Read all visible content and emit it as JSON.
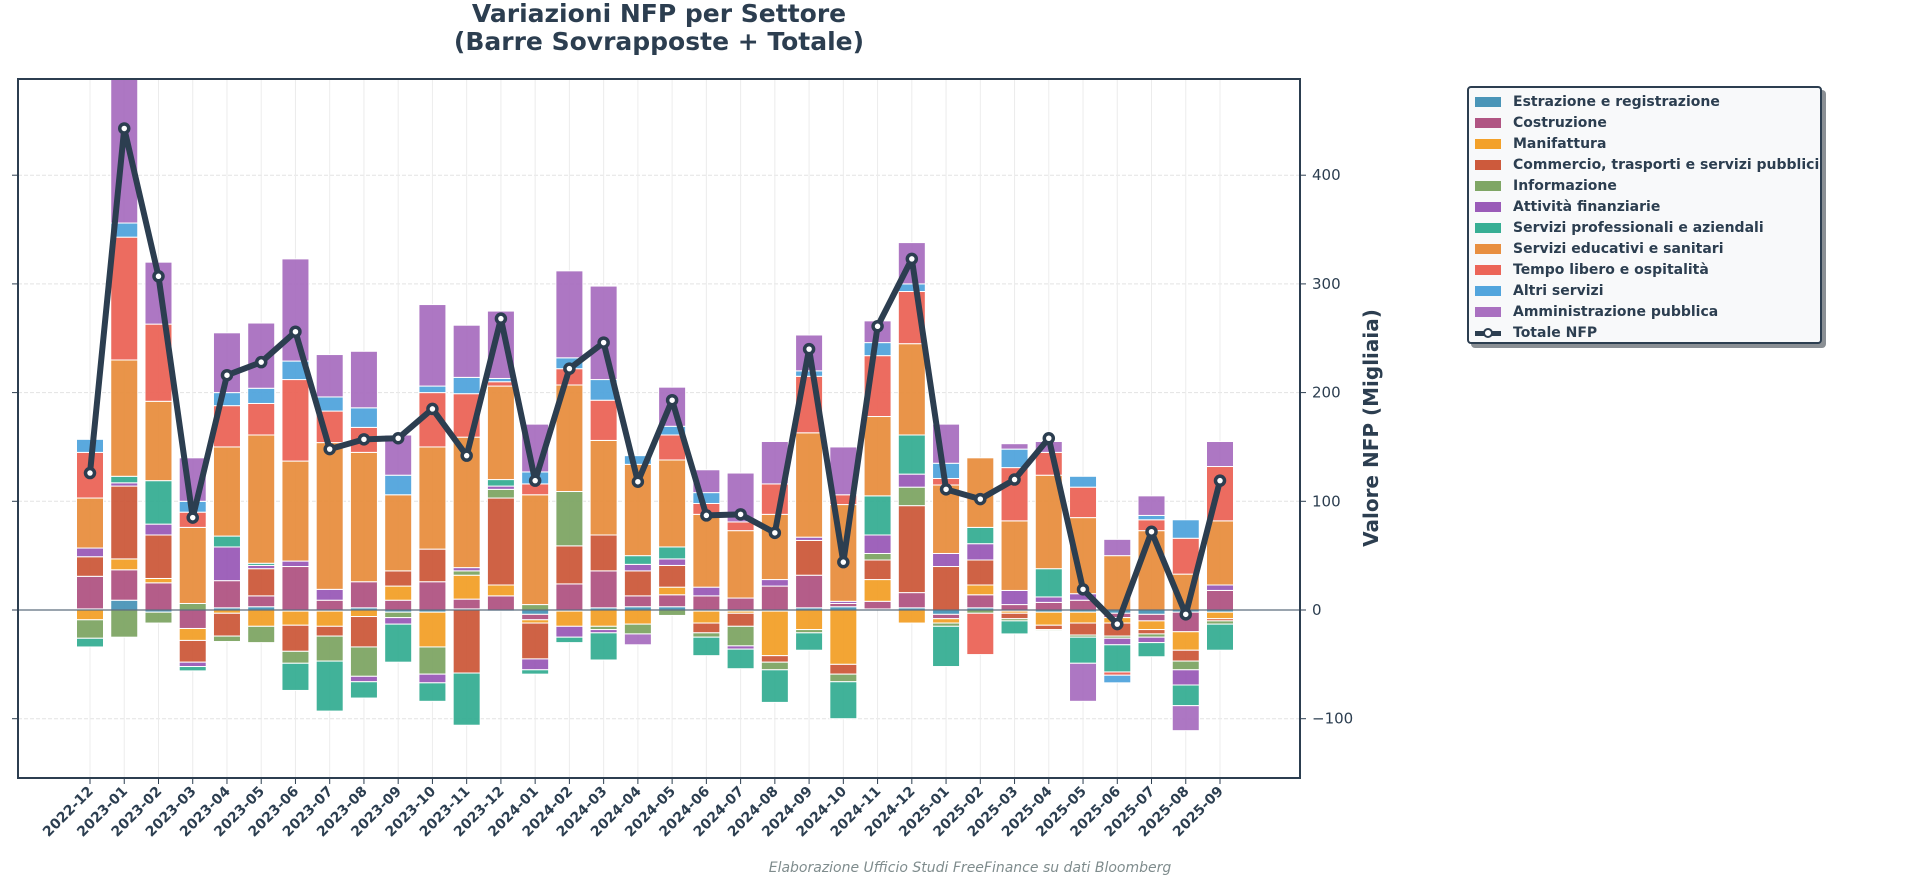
{
  "chart_data": {
    "type": "bar",
    "stacked": true,
    "title": "Variazioni NFP per Settore",
    "subtitle": "(Barre Sovrapposte + Totale)",
    "xlabel": "",
    "ylabel": "Valore NFP (Migliaia)",
    "ylim": [
      -145,
      490
    ],
    "yticks": [
      -100,
      0,
      100,
      200,
      300,
      400
    ],
    "ytick_labels": [
      "−100",
      "0",
      "100",
      "200",
      "300",
      "400"
    ],
    "grid": true,
    "legend_position": "outside-right-top",
    "source_note": "Elaborazione Ufficio Studi FreeFinance su dati Bloomberg",
    "categories": [
      "2022-12",
      "2023-01",
      "2023-02",
      "2023-03",
      "2023-04",
      "2023-05",
      "2023-06",
      "2023-07",
      "2023-08",
      "2023-09",
      "2023-10",
      "2023-11",
      "2023-12",
      "2024-01",
      "2024-02",
      "2024-03",
      "2024-04",
      "2024-05",
      "2024-06",
      "2024-07",
      "2024-08",
      "2024-09",
      "2024-10",
      "2024-11",
      "2024-12",
      "2025-01",
      "2025-02",
      "2025-03",
      "2025-04",
      "2025-05",
      "2025-06",
      "2025-07",
      "2025-08",
      "2025-09"
    ],
    "series": [
      {
        "name": "Estrazione e registrazione",
        "color": "#4a95b8",
        "values": [
          1,
          9,
          -2,
          0,
          2,
          3,
          -1,
          -1,
          2,
          -2,
          -2,
          1,
          -1,
          -4,
          -1,
          2,
          3,
          3,
          -1,
          -1,
          -1,
          2,
          3,
          1,
          2,
          -4,
          2,
          -1,
          -2,
          -2,
          -3,
          -4,
          -2,
          -2
        ]
      },
      {
        "name": "Costruzione",
        "color": "#b05583",
        "values": [
          30,
          28,
          25,
          -17,
          25,
          10,
          40,
          9,
          24,
          9,
          26,
          9,
          13,
          -5,
          24,
          34,
          10,
          11,
          13,
          11,
          22,
          30,
          3,
          7,
          14,
          -4,
          12,
          5,
          7,
          9,
          -4,
          -6,
          -18,
          18
        ]
      },
      {
        "name": "Manifattura",
        "color": "#f3a12a",
        "values": [
          -9,
          10,
          4,
          -11,
          -3,
          -15,
          -13,
          -14,
          -6,
          13,
          -32,
          22,
          10,
          -3,
          -14,
          -15,
          -13,
          7,
          -11,
          -2,
          -41,
          -18,
          -50,
          20,
          -12,
          -4,
          9,
          -2,
          -12,
          -10,
          -5,
          -8,
          -17,
          -6
        ]
      },
      {
        "name": "Commercio, trasporti e servizi pubblici",
        "color": "#cd5a3c",
        "values": [
          18,
          67,
          40,
          -20,
          -21,
          25,
          -24,
          -9,
          -28,
          14,
          30,
          -58,
          80,
          -33,
          35,
          33,
          23,
          20,
          -9,
          -12,
          -6,
          32,
          -9,
          18,
          80,
          40,
          23,
          -5,
          -4,
          -11,
          -12,
          -4,
          -10,
          -2
        ]
      },
      {
        "name": "Informazione",
        "color": "#7fa665",
        "values": [
          -17,
          -25,
          -10,
          6,
          -5,
          -15,
          -11,
          -23,
          -27,
          -5,
          -25,
          4,
          8,
          5,
          50,
          -3,
          -9,
          -5,
          -4,
          -18,
          -7,
          -3,
          -7,
          6,
          17,
          -3,
          -3,
          -2,
          -1,
          -2,
          -2,
          -3,
          -8,
          -3
        ]
      },
      {
        "name": "Attività finanziarie",
        "color": "#9a5bb8",
        "values": [
          8,
          3,
          10,
          -4,
          31,
          3,
          5,
          10,
          -5,
          -6,
          -8,
          3,
          3,
          -10,
          -10,
          -3,
          6,
          6,
          8,
          -3,
          6,
          3,
          2,
          17,
          12,
          12,
          15,
          13,
          5,
          6,
          -6,
          -5,
          -14,
          5
        ]
      },
      {
        "name": "Servizi professionali e aziendali",
        "color": "#37ae94",
        "values": [
          -8,
          6,
          40,
          -4,
          10,
          2,
          -25,
          -46,
          -15,
          -35,
          -17,
          -48,
          6,
          -4,
          -5,
          -25,
          8,
          11,
          -17,
          -18,
          -30,
          -16,
          -34,
          36,
          36,
          -37,
          15,
          -12,
          26,
          -24,
          -25,
          -13,
          -19,
          -24
        ]
      },
      {
        "name": "Servizi educativi e sanitari",
        "color": "#e88f40",
        "values": [
          46,
          107,
          73,
          70,
          82,
          118,
          92,
          135,
          119,
          70,
          94,
          120,
          86,
          101,
          98,
          87,
          84,
          80,
          67,
          62,
          60,
          96,
          89,
          73,
          84,
          63,
          64,
          64,
          86,
          70,
          50,
          73,
          33,
          59
        ]
      },
      {
        "name": "Tempo libero e ospitalità",
        "color": "#ec6558",
        "values": [
          42,
          113,
          71,
          14,
          38,
          29,
          75,
          29,
          23,
          0,
          50,
          40,
          4,
          10,
          15,
          37,
          0,
          23,
          10,
          8,
          28,
          52,
          9,
          56,
          48,
          6,
          -38,
          49,
          21,
          28,
          -3,
          10,
          33,
          50
        ]
      },
      {
        "name": "Altri servizi",
        "color": "#52a5dd",
        "values": [
          12,
          13,
          0,
          10,
          12,
          14,
          17,
          13,
          18,
          18,
          6,
          15,
          3,
          11,
          10,
          19,
          8,
          8,
          10,
          0,
          0,
          5,
          0,
          12,
          7,
          14,
          0,
          17,
          0,
          10,
          -7,
          4,
          17,
          0
        ]
      },
      {
        "name": "Amministrazione pubblica",
        "color": "#a970c0",
        "values": [
          0,
          133,
          57,
          40,
          55,
          60,
          94,
          39,
          52,
          37,
          75,
          48,
          62,
          44,
          80,
          86,
          -10,
          36,
          21,
          45,
          39,
          33,
          44,
          20,
          38,
          36,
          0,
          5,
          10,
          -35,
          15,
          18,
          -23,
          23
        ]
      }
    ],
    "total": {
      "name": "Totale NFP",
      "color": "#2c3e50",
      "values": [
        126,
        443,
        307,
        85,
        216,
        228,
        256,
        148,
        157,
        158,
        185,
        142,
        268,
        119,
        222,
        246,
        118,
        193,
        87,
        88,
        71,
        240,
        44,
        261,
        323,
        111,
        102,
        120,
        158,
        19,
        -13,
        72,
        -4,
        119
      ]
    }
  }
}
